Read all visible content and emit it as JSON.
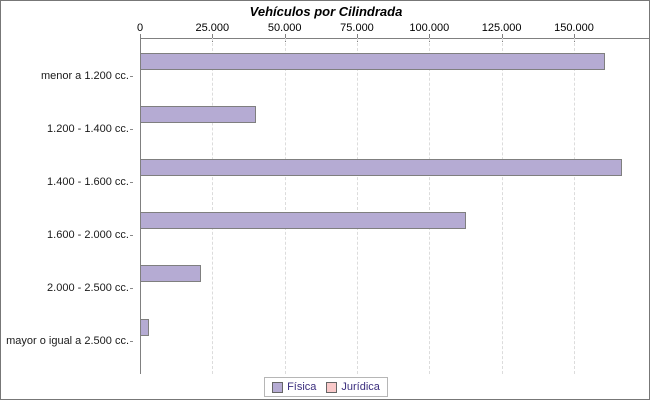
{
  "chart_data": {
    "type": "bar",
    "orientation": "horizontal",
    "title": "Vehículos por Cilindrada",
    "categories": [
      "menor a 1.200 cc.",
      "1.200 - 1.400 cc.",
      "1.400 - 1.600 cc.",
      "1.600 - 2.000 cc.",
      "2.000 - 2.500 cc.",
      "mayor o igual a 2.500 cc."
    ],
    "series": [
      {
        "name": "Física",
        "color": "#b5abd3",
        "border_color": "#7f7f7f",
        "values": [
          160000,
          39500,
          166000,
          112000,
          20500,
          2400
        ]
      },
      {
        "name": "Jurídica",
        "color": "#f9c9c9",
        "border_color": "#7f7f7f",
        "values": [
          0,
          0,
          0,
          0,
          0,
          0
        ]
      }
    ],
    "x_axis": {
      "tick_labels": [
        "0",
        "25.000",
        "50.000",
        "75.000",
        "100.000",
        "125.000",
        "150.000"
      ],
      "tick_values": [
        0,
        25000,
        50000,
        75000,
        100000,
        125000,
        150000
      ],
      "visible_max": 176600
    },
    "xlabel": "",
    "ylabel": "",
    "grid": "vertical-dashed",
    "legend_position": "bottom",
    "legend_text_color": "#3b2e7e",
    "background_color": "#ffffff"
  }
}
